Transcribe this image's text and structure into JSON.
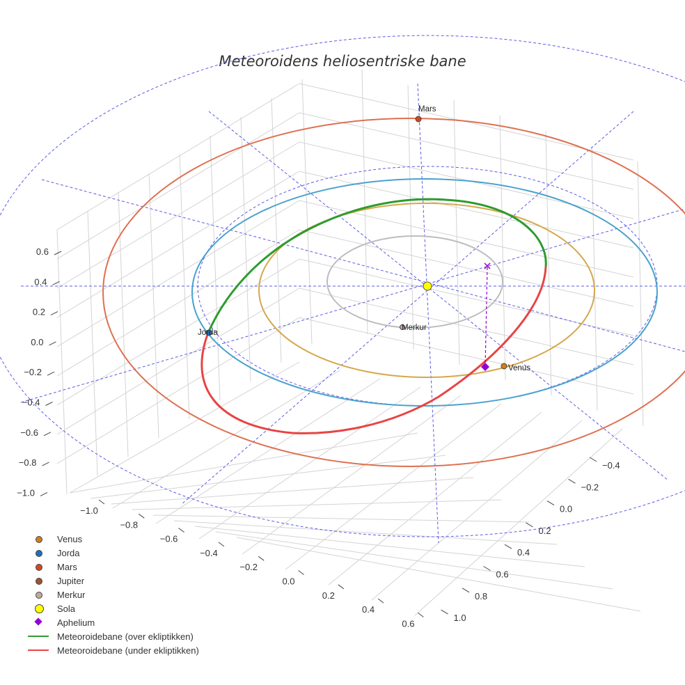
{
  "chart_data": {
    "type": "3d-line",
    "title": "Meteoroidens heliosentriske bane",
    "z_ticks": [
      "0.6",
      "0.4",
      "0.2",
      "0.0",
      "−0.2",
      "−0.4",
      "−0.6",
      "−0.8",
      "−1.0"
    ],
    "x_ticks": [
      "−1.0",
      "−0.8",
      "−0.6",
      "−0.4",
      "−0.2",
      "0.0",
      "0.2",
      "0.4",
      "0.6"
    ],
    "y_ticks": [
      "−0.4",
      "−0.2",
      "0.0",
      "0.2",
      "0.4",
      "0.6",
      "0.8",
      "1.0"
    ],
    "orbits": [
      {
        "name": "Merkur",
        "radius_au": 0.39,
        "color": "#bdbdbd"
      },
      {
        "name": "Venus",
        "radius_au": 0.72,
        "color": "#d4a84a"
      },
      {
        "name": "Jorda",
        "radius_au": 1.0,
        "color": "#4aa1cc"
      },
      {
        "name": "Mars",
        "radius_au": 1.52,
        "color": "#dd7050"
      }
    ],
    "meteoroid_orbit": {
      "above_ecliptic": {
        "name": "Meteoroidebane (over ekliptikken)",
        "color": "#2e9b2e"
      },
      "below_ecliptic": {
        "name": "Meteoroidebane (under ekliptikken)",
        "color": "#e84444"
      }
    },
    "point_labels": [
      "Mars",
      "Jorda",
      "Merkur",
      "Venus"
    ],
    "legend": [
      {
        "name": "Venus",
        "color": "#d07f1e",
        "symbol": "dot"
      },
      {
        "name": "Jorda",
        "color": "#1f6fbf",
        "symbol": "dot"
      },
      {
        "name": "Mars",
        "color": "#d2481c",
        "symbol": "dot"
      },
      {
        "name": "Jupiter",
        "color": "#a0522d",
        "symbol": "dot"
      },
      {
        "name": "Merkur",
        "color": "#c0a9a0",
        "symbol": "dot"
      },
      {
        "name": "Sola",
        "color": "#ffff00",
        "symbol": "big-dot"
      },
      {
        "name": "Aphelium",
        "color": "#9400d3",
        "symbol": "diamond"
      },
      {
        "name": "Meteoroidebane (over ekliptikken)",
        "color": "#2e9b2e",
        "symbol": "line"
      },
      {
        "name": "Meteoroidebane (under ekliptikken)",
        "color": "#e84444",
        "symbol": "line"
      }
    ],
    "grid": true,
    "legend_position": "bottom-left"
  }
}
